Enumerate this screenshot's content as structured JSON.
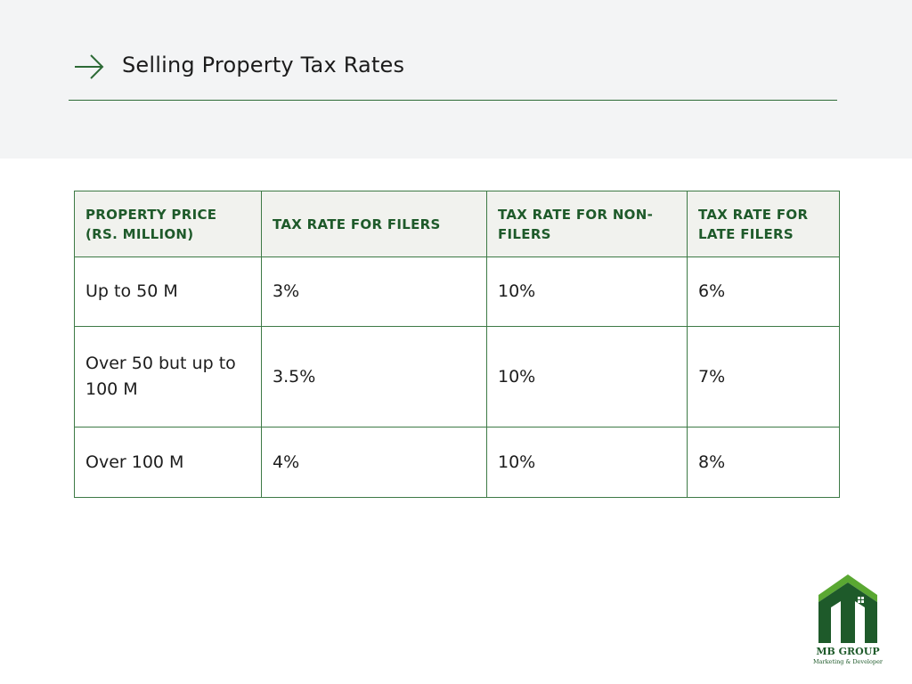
{
  "header": {
    "title": "Selling Property Tax Rates"
  },
  "table": {
    "columns": [
      "PROPERTY PRICE (RS. MILLION)",
      "TAX RATE FOR FILERS",
      "TAX RATE FOR NON-FILERS",
      "TAX RATE FOR LATE FILERS"
    ],
    "rows": [
      [
        "Up to 50 M",
        "3%",
        "10%",
        "6%"
      ],
      [
        "Over 50 but up to 100 M",
        "3.5%",
        "10%",
        "7%"
      ],
      [
        "Over 100 M",
        "4%",
        "10%",
        "8%"
      ]
    ]
  },
  "logo": {
    "name": "MB GROUP",
    "tagline": "Marketing & Developer"
  }
}
